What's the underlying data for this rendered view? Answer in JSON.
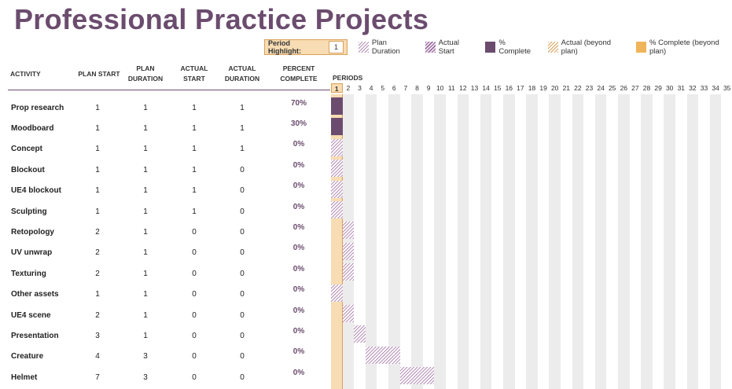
{
  "title": "Professional Practice Projects",
  "legend": {
    "period_highlight_label": "Period Highlight:",
    "period_highlight_value": "1",
    "plan_duration": "Plan Duration",
    "actual_start": "Actual Start",
    "percent_complete": "% Complete",
    "actual_beyond": "Actual (beyond plan)",
    "percent_beyond": "% Complete (beyond plan)"
  },
  "headers": {
    "activity": "ACTIVITY",
    "plan_start": "PLAN START",
    "plan_duration_1": "PLAN",
    "plan_duration_2": "DURATION",
    "actual_start_1": "ACTUAL",
    "actual_start_2": "START",
    "actual_duration_1": "ACTUAL",
    "actual_duration_2": "DURATION",
    "percent_1": "PERCENT",
    "percent_2": "COMPLETE",
    "periods": "PERIODS"
  },
  "period_count": 35,
  "highlight_period": 1,
  "rows": [
    {
      "activity": "Prop research",
      "plan_start": 1,
      "plan_duration": 1,
      "actual_start": 1,
      "actual_duration": 1,
      "percent": "70%",
      "pct": 0.7
    },
    {
      "activity": "Moodboard",
      "plan_start": 1,
      "plan_duration": 1,
      "actual_start": 1,
      "actual_duration": 1,
      "percent": "30%",
      "pct": 0.3
    },
    {
      "activity": "Concept",
      "plan_start": 1,
      "plan_duration": 1,
      "actual_start": 1,
      "actual_duration": 1,
      "percent": "0%",
      "pct": 0
    },
    {
      "activity": "Blockout",
      "plan_start": 1,
      "plan_duration": 1,
      "actual_start": 1,
      "actual_duration": 0,
      "percent": "0%",
      "pct": 0
    },
    {
      "activity": "UE4 blockout",
      "plan_start": 1,
      "plan_duration": 1,
      "actual_start": 1,
      "actual_duration": 0,
      "percent": "0%",
      "pct": 0
    },
    {
      "activity": "Sculpting",
      "plan_start": 1,
      "plan_duration": 1,
      "actual_start": 1,
      "actual_duration": 0,
      "percent": "0%",
      "pct": 0
    },
    {
      "activity": "Retopology",
      "plan_start": 2,
      "plan_duration": 1,
      "actual_start": 0,
      "actual_duration": 0,
      "percent": "0%",
      "pct": 0
    },
    {
      "activity": "UV unwrap",
      "plan_start": 2,
      "plan_duration": 1,
      "actual_start": 0,
      "actual_duration": 0,
      "percent": "0%",
      "pct": 0
    },
    {
      "activity": "Texturing",
      "plan_start": 2,
      "plan_duration": 1,
      "actual_start": 0,
      "actual_duration": 0,
      "percent": "0%",
      "pct": 0
    },
    {
      "activity": "Other assets",
      "plan_start": 1,
      "plan_duration": 1,
      "actual_start": 0,
      "actual_duration": 0,
      "percent": "0%",
      "pct": 0
    },
    {
      "activity": "UE4 scene",
      "plan_start": 2,
      "plan_duration": 1,
      "actual_start": 0,
      "actual_duration": 0,
      "percent": "0%",
      "pct": 0
    },
    {
      "activity": "Presentation",
      "plan_start": 3,
      "plan_duration": 1,
      "actual_start": 0,
      "actual_duration": 0,
      "percent": "0%",
      "pct": 0
    },
    {
      "activity": "Creature",
      "plan_start": 4,
      "plan_duration": 3,
      "actual_start": 0,
      "actual_duration": 0,
      "percent": "0%",
      "pct": 0
    },
    {
      "activity": "Helmet",
      "plan_start": 7,
      "plan_duration": 3,
      "actual_start": 0,
      "actual_duration": 0,
      "percent": "0%",
      "pct": 0
    }
  ]
}
